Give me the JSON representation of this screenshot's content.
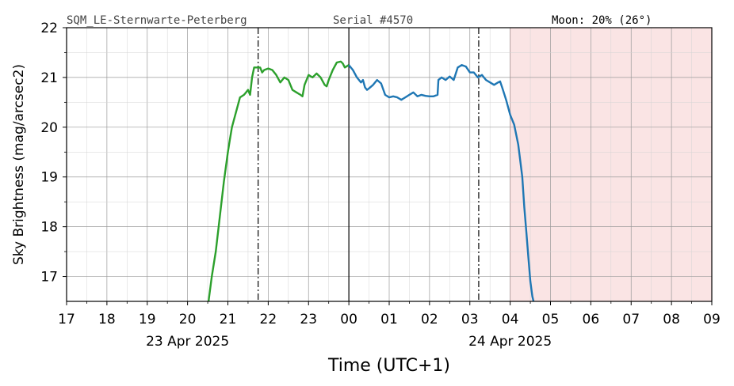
{
  "header": {
    "station": "SQM_LE-Sternwarte-Peterberg",
    "serial": "Serial #4570",
    "moon": "Moon: 20% (26°)"
  },
  "chart_data": {
    "type": "line",
    "ylabel": "Sky Brightness (mag/arcsec2)",
    "xlabel": "Time (UTC+1)",
    "xlim": [
      17,
      33
    ],
    "ylim": [
      16.5,
      22
    ],
    "x_ticks": [
      17,
      18,
      19,
      20,
      21,
      22,
      23,
      24,
      25,
      26,
      27,
      28,
      29,
      30,
      31,
      32,
      33
    ],
    "x_tick_labels": [
      "17",
      "18",
      "19",
      "20",
      "21",
      "22",
      "23",
      "00",
      "01",
      "02",
      "03",
      "04",
      "05",
      "06",
      "07",
      "08",
      "09"
    ],
    "y_ticks": [
      17,
      18,
      19,
      20,
      21,
      22
    ],
    "y_tick_labels": [
      "17",
      "18",
      "19",
      "20",
      "21",
      "22"
    ],
    "date_labels": [
      {
        "x": 20.0,
        "text": "23 Apr 2025"
      },
      {
        "x": 28.0,
        "text": "24 Apr 2025"
      }
    ],
    "vlines": [
      {
        "x": 21.75,
        "style": "dashdot"
      },
      {
        "x": 24.0,
        "style": "solid"
      },
      {
        "x": 27.22,
        "style": "dashdot"
      }
    ],
    "shaded_region": {
      "x_start": 28.0,
      "x_end": 33.0,
      "color": "#fae4e4"
    },
    "series": [
      {
        "color": "#2ca02c",
        "points": [
          [
            20.52,
            16.5
          ],
          [
            20.6,
            17.0
          ],
          [
            20.7,
            17.5
          ],
          [
            20.8,
            18.2
          ],
          [
            20.9,
            18.9
          ],
          [
            21.0,
            19.5
          ],
          [
            21.05,
            19.75
          ],
          [
            21.1,
            20.0
          ],
          [
            21.2,
            20.3
          ],
          [
            21.3,
            20.6
          ],
          [
            21.4,
            20.65
          ],
          [
            21.45,
            20.7
          ],
          [
            21.5,
            20.75
          ],
          [
            21.55,
            20.65
          ],
          [
            21.6,
            21.0
          ],
          [
            21.65,
            21.2
          ],
          [
            21.7,
            21.2
          ],
          [
            21.8,
            21.2
          ],
          [
            21.85,
            21.1
          ],
          [
            21.9,
            21.15
          ],
          [
            22.0,
            21.18
          ],
          [
            22.1,
            21.15
          ],
          [
            22.2,
            21.05
          ],
          [
            22.3,
            20.9
          ],
          [
            22.4,
            21.0
          ],
          [
            22.5,
            20.95
          ],
          [
            22.6,
            20.75
          ],
          [
            22.7,
            20.7
          ],
          [
            22.8,
            20.65
          ],
          [
            22.85,
            20.62
          ],
          [
            22.9,
            20.85
          ],
          [
            23.0,
            21.05
          ],
          [
            23.1,
            21.0
          ],
          [
            23.2,
            21.08
          ],
          [
            23.3,
            21.0
          ],
          [
            23.4,
            20.85
          ],
          [
            23.45,
            20.82
          ],
          [
            23.5,
            20.95
          ],
          [
            23.6,
            21.15
          ],
          [
            23.7,
            21.3
          ],
          [
            23.8,
            21.32
          ],
          [
            23.85,
            21.28
          ],
          [
            23.9,
            21.2
          ],
          [
            24.0,
            21.25
          ]
        ]
      },
      {
        "color": "#1f77b4",
        "points": [
          [
            24.0,
            21.25
          ],
          [
            24.1,
            21.15
          ],
          [
            24.2,
            21.0
          ],
          [
            24.3,
            20.9
          ],
          [
            24.35,
            20.95
          ],
          [
            24.4,
            20.8
          ],
          [
            24.45,
            20.75
          ],
          [
            24.5,
            20.78
          ],
          [
            24.6,
            20.85
          ],
          [
            24.7,
            20.95
          ],
          [
            24.8,
            20.88
          ],
          [
            24.9,
            20.65
          ],
          [
            25.0,
            20.6
          ],
          [
            25.1,
            20.62
          ],
          [
            25.2,
            20.6
          ],
          [
            25.3,
            20.55
          ],
          [
            25.4,
            20.6
          ],
          [
            25.5,
            20.65
          ],
          [
            25.6,
            20.7
          ],
          [
            25.7,
            20.62
          ],
          [
            25.8,
            20.65
          ],
          [
            25.9,
            20.63
          ],
          [
            26.0,
            20.62
          ],
          [
            26.1,
            20.62
          ],
          [
            26.2,
            20.65
          ],
          [
            26.22,
            20.95
          ],
          [
            26.3,
            21.0
          ],
          [
            26.4,
            20.95
          ],
          [
            26.5,
            21.02
          ],
          [
            26.6,
            20.95
          ],
          [
            26.7,
            21.2
          ],
          [
            26.8,
            21.25
          ],
          [
            26.9,
            21.22
          ],
          [
            27.0,
            21.1
          ],
          [
            27.1,
            21.1
          ],
          [
            27.2,
            21.0
          ],
          [
            27.3,
            21.05
          ],
          [
            27.4,
            20.95
          ],
          [
            27.5,
            20.9
          ],
          [
            27.6,
            20.85
          ],
          [
            27.7,
            20.9
          ],
          [
            27.75,
            20.92
          ],
          [
            27.8,
            20.8
          ],
          [
            27.9,
            20.55
          ],
          [
            28.0,
            20.25
          ],
          [
            28.1,
            20.05
          ],
          [
            28.2,
            19.65
          ],
          [
            28.3,
            19.0
          ],
          [
            28.35,
            18.4
          ],
          [
            28.4,
            17.9
          ],
          [
            28.45,
            17.4
          ],
          [
            28.5,
            16.9
          ],
          [
            28.55,
            16.6
          ],
          [
            28.58,
            16.5
          ]
        ]
      }
    ]
  }
}
